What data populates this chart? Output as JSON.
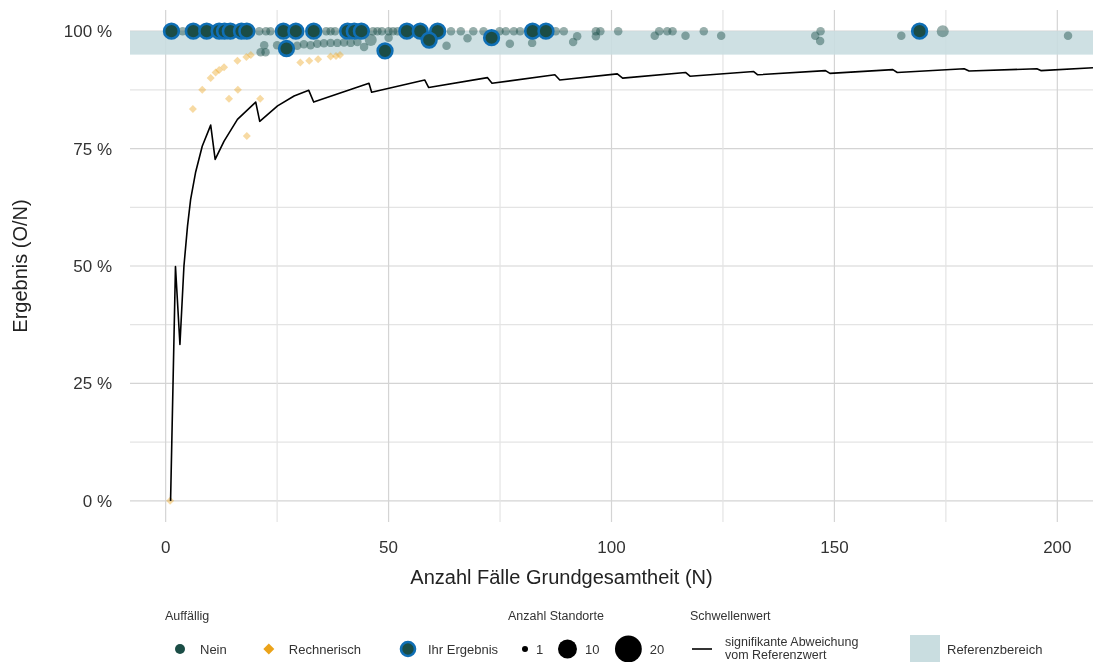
{
  "chart_data": {
    "type": "bubble",
    "xlabel": "Anzahl Fälle Grundgesamtheit (N)",
    "ylabel": "Ergebnis (O/N)",
    "xlim": [
      -8,
      208
    ],
    "ylim": [
      -4.5,
      104.5
    ],
    "xticks": [
      0,
      {
        "value": 25,
        "label": null
      },
      50,
      {
        "value": 75,
        "label": null
      },
      100,
      {
        "value": 125,
        "label": null
      },
      150,
      {
        "value": 175,
        "label": null
      },
      200
    ],
    "yticks": [
      {
        "value": 0,
        "label": "0 %"
      },
      {
        "value": 12.5,
        "label": null
      },
      {
        "value": 25,
        "label": "25 %"
      },
      {
        "value": 37.5,
        "label": null
      },
      {
        "value": 50,
        "label": "50 %"
      },
      {
        "value": 62.5,
        "label": null
      },
      {
        "value": 75,
        "label": "75 %"
      },
      {
        "value": 87.5,
        "label": null
      },
      {
        "value": 100,
        "label": "100 %"
      }
    ],
    "grid": true,
    "legend": "bottom",
    "legend_title": "Auffällig",
    "size_legend": [
      1,
      10,
      20
    ],
    "annotations": [
      "Anzahl Standorte",
      "Schwellenwert"
    ],
    "bands": [
      {
        "axis": "y",
        "from": 95,
        "to": 100,
        "label": "Referenzbereich",
        "color": "#c9dde0"
      }
    ],
    "series": [
      {
        "name": "Nein",
        "color": "#1b4d46",
        "x": [
          3.8,
          21,
          22.5,
          23.5,
          36,
          37,
          38,
          46.5,
          47.5,
          48.5,
          50,
          51,
          52,
          64,
          66.2,
          69,
          71.3,
          74.9,
          76.3,
          78.1,
          79.5,
          87.5,
          89.3,
          96.5,
          97.5,
          101.5,
          110.7,
          112.5,
          113.7,
          120.7,
          146.9,
          174.3,
          22.1,
          21.3,
          22.4,
          25,
          29.5,
          31,
          32.5,
          34,
          35.5,
          37,
          38.5,
          40,
          41.5,
          43,
          44.5,
          46,
          50,
          63,
          67.7,
          77.2,
          82.2,
          91.4,
          92.3,
          96.5,
          109.7,
          116.6,
          124.6,
          145.7,
          146.8,
          165,
          202.4
        ],
        "values": [
          100,
          100,
          100,
          100,
          100,
          100,
          100,
          100,
          100,
          100,
          100,
          100,
          100,
          100,
          100,
          100,
          100,
          100,
          100,
          100,
          100,
          100,
          100,
          100,
          100,
          100,
          100,
          100,
          100,
          100,
          100,
          100,
          97,
          95.5,
          95.5,
          97,
          96.9,
          97.2,
          97,
          97.3,
          97.4,
          97.5,
          97.5,
          97.6,
          97.5,
          97.7,
          96.6,
          98.1,
          98.6,
          96.9,
          98.5,
          97.3,
          97.5,
          97.7,
          98.9,
          98.9,
          99,
          99,
          99,
          99,
          97.9,
          99,
          99
        ],
        "sizes": [
          2,
          2,
          2,
          2,
          2,
          2,
          2,
          2,
          2,
          2,
          2,
          2,
          2,
          2,
          2,
          2,
          2,
          2,
          2,
          2,
          2,
          2,
          2,
          2,
          2,
          2,
          2,
          2,
          2,
          2,
          2,
          4,
          2,
          2,
          2,
          2,
          2,
          2,
          2,
          2,
          2,
          2,
          2,
          2,
          2,
          2,
          2,
          4,
          2,
          2,
          2,
          2,
          2,
          2,
          2,
          2,
          2,
          2,
          2,
          2,
          2,
          2,
          2
        ]
      },
      {
        "name": "Rechnerisch",
        "type": "scatter",
        "marker": "diamond",
        "color": "#eba31a",
        "x": [
          1,
          6.1,
          8.2,
          10.1,
          11.2,
          12,
          13.1,
          16.1,
          18.1,
          19.1,
          16.2,
          14.2,
          21.2,
          18.2,
          30.2,
          32.2,
          34.2,
          37,
          38.2,
          39.1
        ],
        "values": [
          0,
          83.4,
          87.5,
          90,
          91.2,
          91.7,
          92.3,
          93.7,
          94.5,
          94.9,
          87.5,
          85.6,
          85.6,
          77.7,
          93.3,
          93.7,
          94,
          94.6,
          94.7,
          94.9
        ]
      },
      {
        "name": "Ihr Ergebnis",
        "color": "#0f6fb5",
        "x": [
          1.3,
          6.2,
          9.2,
          12,
          13.2,
          14.5,
          17,
          18.2,
          26.4,
          29.2,
          33.2,
          40.8,
          42.3,
          43.9,
          54.1,
          57.1,
          61,
          82.3,
          85.3,
          169.1,
          27.1,
          49.2,
          59.1,
          73.1
        ],
        "values": [
          100,
          100,
          100,
          100,
          100,
          100,
          100,
          100,
          100,
          100,
          100,
          100,
          100,
          100,
          100,
          100,
          100,
          100,
          100,
          100,
          96.3,
          95.8,
          98.1,
          98.6
        ],
        "sizes": [
          6,
          6,
          6,
          6,
          6,
          6,
          6,
          6,
          6,
          6,
          6,
          6,
          6,
          6,
          6,
          6,
          6,
          6,
          6,
          6,
          6,
          6,
          6,
          6
        ]
      },
      {
        "name": "signifikante Abweichung vom Referenzwert",
        "type": "line",
        "color": "#000000",
        "x": [
          1.1,
          2.2,
          3.2,
          4.1,
          4.9,
          5.6,
          6.7,
          8.2,
          10.1,
          11.1,
          13.1,
          16.1,
          20.2,
          21.1,
          25.1,
          28.8,
          32.1,
          33.2,
          45.6,
          46.2,
          58.1,
          59,
          72.2,
          73.2,
          87.3,
          88.4,
          101.3,
          102.5,
          116.6,
          117.6,
          131.9,
          132.8,
          148,
          149,
          163.1,
          164.1,
          179.1,
          180.2,
          195.4,
          196.3,
          208
        ],
        "values": [
          0,
          49.9,
          33.3,
          50,
          58.5,
          64.2,
          69.9,
          75.5,
          80,
          72.7,
          76.6,
          81.2,
          84.9,
          80.8,
          84.1,
          86.2,
          87.4,
          84.9,
          88.9,
          87,
          89.6,
          88,
          90.1,
          88.9,
          90.7,
          89.6,
          90.9,
          90,
          91.2,
          90.4,
          91.4,
          90.7,
          91.6,
          91,
          91.8,
          91.2,
          92,
          91.5,
          92,
          91.6,
          92.2
        ]
      }
    ]
  }
}
